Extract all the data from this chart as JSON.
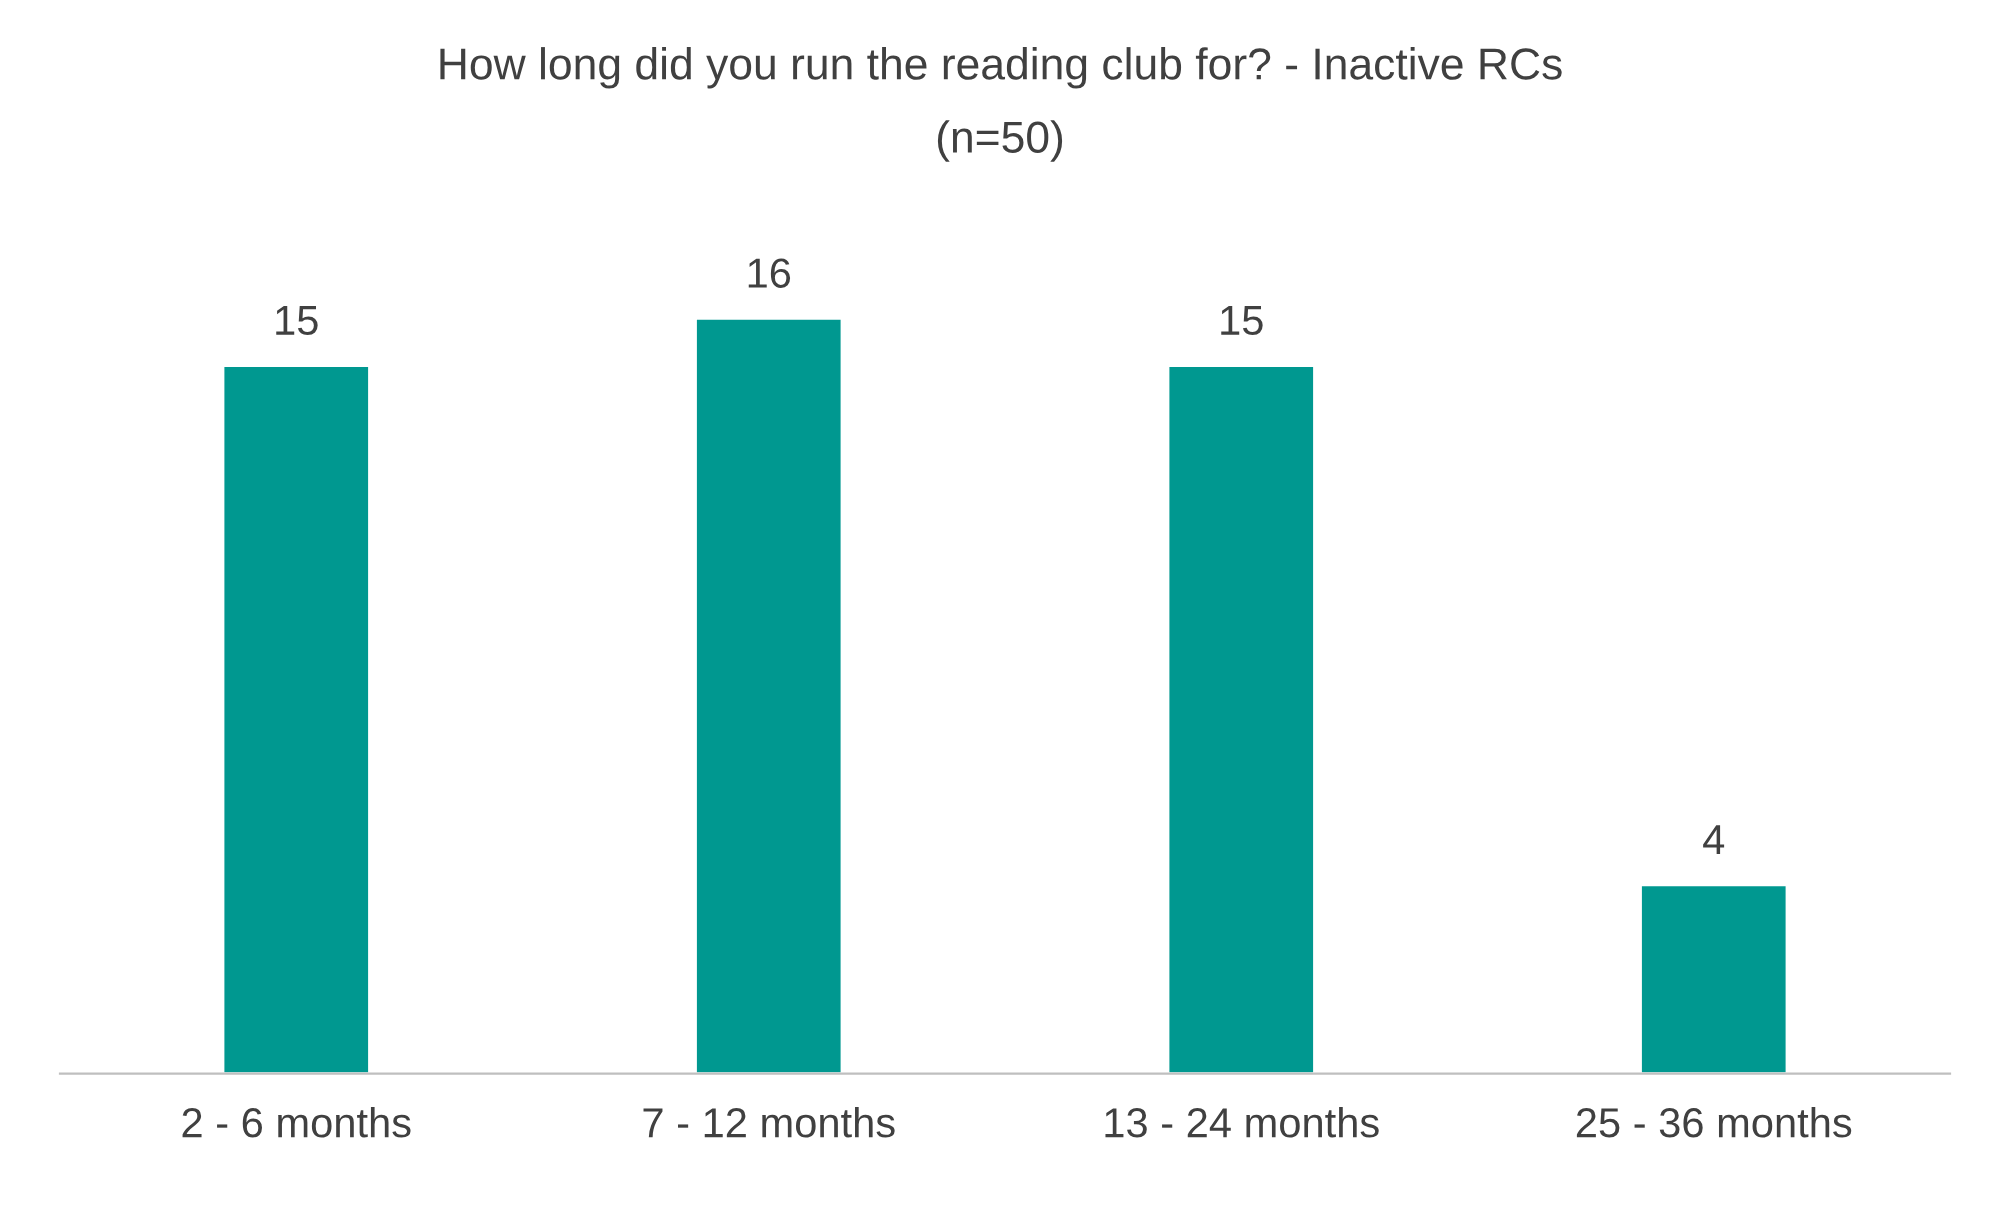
{
  "chart_data": {
    "type": "bar",
    "title": "How long did you run the reading club for? - Inactive RCs",
    "subtitle": "(n=50)",
    "categories": [
      "2 - 6 months",
      "7 - 12 months",
      "13 - 24 months",
      "25 - 36 months"
    ],
    "values": [
      15,
      16,
      15,
      4
    ],
    "color": "#009890",
    "data_labels": true,
    "grid": false,
    "legend": false,
    "tick_labels": "x"
  }
}
